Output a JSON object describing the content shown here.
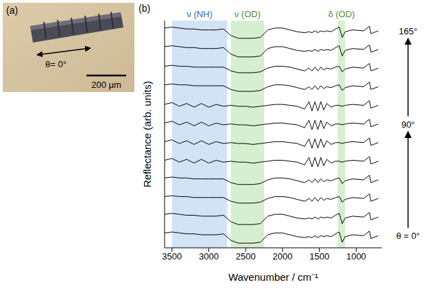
{
  "panel_a": {
    "label": "(a)",
    "angle_label": "θ= 0°",
    "scale_label": "200 µm"
  },
  "chart_data": {
    "type": "line",
    "panel_label": "(b)",
    "x_label": "Wavenumber / cm⁻¹",
    "y_label": "Reflectance (arb. units)",
    "x": [
      3600,
      3500,
      3400,
      3300,
      3200,
      3100,
      3000,
      2900,
      2800,
      2700,
      2600,
      2500,
      2400,
      2300,
      2200,
      2100,
      2000,
      1900,
      1800,
      1700,
      1640,
      1600,
      1560,
      1520,
      1480,
      1440,
      1400,
      1340,
      1280,
      1230,
      1190,
      1150,
      1050,
      900,
      820,
      800,
      700
    ],
    "xlim": [
      3600,
      650
    ],
    "xticks": [
      3500,
      3000,
      2500,
      2000,
      1500,
      1000
    ],
    "ylim": [
      -0.6,
      11.6
    ],
    "tick_labels": "x",
    "grid": false,
    "color": "#000000",
    "bands": [
      {
        "label": "ν (NH)",
        "x": [
          3500,
          2750
        ],
        "color": "#d3e3f6"
      },
      {
        "label": "ν (OD)",
        "x": [
          2700,
          2250
        ],
        "color": "#d6efd0"
      },
      {
        "label": "δ (OD)",
        "x": [
          1250,
          1150
        ],
        "color": "#d6efd0"
      }
    ],
    "series": [
      {
        "label": "θ = 0°",
        "values": [
          0.2,
          0.25,
          0.2,
          0.15,
          0.15,
          0.1,
          0.1,
          0.1,
          0.15,
          -0.2,
          -0.35,
          -0.35,
          -0.35,
          -0.3,
          0.1,
          0.2,
          0.2,
          0.1,
          0,
          -0.05,
          0,
          -0.05,
          0.05,
          -0.05,
          0.05,
          0,
          0.05,
          0,
          0.15,
          0.25,
          -0.3,
          0,
          0.1,
          0.05,
          0.3,
          -0.1,
          0.05
        ]
      },
      {
        "values": [
          1.2,
          1.25,
          1.2,
          1.15,
          1.15,
          1.1,
          1.1,
          1.1,
          1.15,
          0.8,
          0.65,
          0.65,
          0.65,
          0.7,
          1.1,
          1.2,
          1.2,
          1.1,
          1,
          0.95,
          1,
          0.95,
          1.05,
          0.95,
          1.05,
          1,
          1.05,
          1,
          1.15,
          1.25,
          0.7,
          1,
          1.1,
          1.05,
          1.3,
          0.9,
          1.05
        ]
      },
      {
        "values": [
          2.15,
          2.2,
          2.15,
          2.15,
          2.1,
          2.1,
          2.1,
          2.1,
          2.1,
          1.9,
          1.8,
          1.8,
          1.8,
          1.85,
          2.05,
          2.15,
          2.15,
          2.1,
          2,
          1.9,
          2.05,
          1.9,
          2.1,
          1.9,
          2.1,
          1.95,
          2.05,
          2,
          2.1,
          2.15,
          1.85,
          2,
          2.1,
          2.05,
          2.3,
          1.9,
          2.05
        ]
      },
      {
        "values": [
          3.15,
          3.2,
          3.15,
          3.15,
          3.1,
          3.1,
          3.1,
          3.1,
          3.1,
          2.9,
          2.8,
          2.8,
          2.8,
          2.85,
          3.05,
          3.15,
          3.15,
          3.1,
          3,
          2.9,
          3.05,
          2.9,
          3.1,
          2.9,
          3.1,
          2.95,
          3.05,
          3,
          3.1,
          3.15,
          2.85,
          3,
          3.1,
          3.05,
          3.3,
          2.9,
          3.05
        ]
      },
      {
        "values": [
          4.1,
          4.2,
          4,
          4.15,
          3.95,
          4.15,
          3.95,
          4.1,
          4,
          4.05,
          4,
          4,
          3.95,
          4,
          4.05,
          4.1,
          4.1,
          4.05,
          4,
          3.85,
          4.25,
          3.75,
          4.25,
          3.75,
          4.25,
          3.8,
          4.15,
          3.95,
          4.05,
          4.05,
          4,
          4.05,
          4.1,
          4.05,
          4.3,
          3.9,
          4.05
        ]
      },
      {
        "values": [
          5.1,
          5.2,
          5,
          5.15,
          4.95,
          5.15,
          4.95,
          5.1,
          5,
          5.05,
          5,
          5,
          4.95,
          5,
          5.05,
          5.1,
          5.1,
          5.05,
          5,
          4.85,
          5.25,
          4.75,
          5.25,
          4.75,
          5.25,
          4.8,
          5.15,
          4.95,
          5.05,
          5.05,
          5,
          5.05,
          5.1,
          5.05,
          5.3,
          4.9,
          5.05
        ]
      },
      {
        "label": "90°",
        "values": [
          6.1,
          6.2,
          6,
          6.15,
          5.95,
          6.15,
          5.95,
          6.1,
          6,
          6.05,
          6,
          6,
          5.95,
          6,
          6.05,
          6.1,
          6.1,
          6.05,
          6,
          5.85,
          6.25,
          5.75,
          6.25,
          5.75,
          6.25,
          5.8,
          6.15,
          5.95,
          6.05,
          6.05,
          6,
          6.05,
          6.1,
          6.05,
          6.3,
          5.9,
          6.05
        ]
      },
      {
        "values": [
          7.1,
          7.2,
          7,
          7.15,
          6.95,
          7.15,
          6.95,
          7.1,
          7,
          7.05,
          7,
          7,
          6.95,
          7,
          7.05,
          7.1,
          7.1,
          7.05,
          7,
          6.85,
          7.25,
          6.75,
          7.25,
          6.75,
          7.25,
          6.8,
          7.15,
          6.95,
          7.05,
          7.05,
          7,
          7.05,
          7.1,
          7.05,
          7.3,
          6.9,
          7.05
        ]
      },
      {
        "values": [
          8.15,
          8.2,
          8.15,
          8.15,
          8.1,
          8.1,
          8.1,
          8.1,
          8.1,
          7.9,
          7.8,
          7.8,
          7.8,
          7.85,
          8.05,
          8.15,
          8.15,
          8.1,
          8,
          7.9,
          8.05,
          7.9,
          8.1,
          7.9,
          8.1,
          7.95,
          8.05,
          8,
          8.1,
          8.15,
          7.85,
          8,
          8.1,
          8.05,
          8.3,
          7.9,
          8.05
        ]
      },
      {
        "values": [
          9.15,
          9.2,
          9.15,
          9.15,
          9.1,
          9.1,
          9.1,
          9.1,
          9.1,
          8.9,
          8.8,
          8.8,
          8.8,
          8.85,
          9.05,
          9.15,
          9.15,
          9.1,
          9,
          8.9,
          9.05,
          8.9,
          9.1,
          8.9,
          9.1,
          8.95,
          9.05,
          9,
          9.1,
          9.15,
          8.85,
          9,
          9.1,
          9.05,
          9.3,
          8.9,
          9.05
        ]
      },
      {
        "values": [
          10.2,
          10.25,
          10.2,
          10.15,
          10.15,
          10.1,
          10.1,
          10.1,
          10.15,
          9.8,
          9.65,
          9.65,
          9.65,
          9.7,
          10.1,
          10.2,
          10.2,
          10.1,
          10,
          9.95,
          10,
          9.95,
          10.05,
          9.95,
          10.05,
          10,
          10.05,
          10,
          10.15,
          10.25,
          9.7,
          10,
          10.1,
          10.05,
          10.3,
          9.9,
          10.05
        ]
      },
      {
        "label": "165°",
        "values": [
          11.2,
          11.25,
          11.2,
          11.15,
          11.15,
          11.1,
          11.1,
          11.1,
          11.15,
          10.8,
          10.65,
          10.65,
          10.65,
          10.7,
          11.1,
          11.2,
          11.2,
          11.1,
          11,
          10.95,
          11,
          10.95,
          11.05,
          10.95,
          11.05,
          11,
          11.05,
          11,
          11.15,
          11.25,
          10.7,
          11,
          11.1,
          11.05,
          11.3,
          10.9,
          11.05
        ]
      }
    ]
  }
}
